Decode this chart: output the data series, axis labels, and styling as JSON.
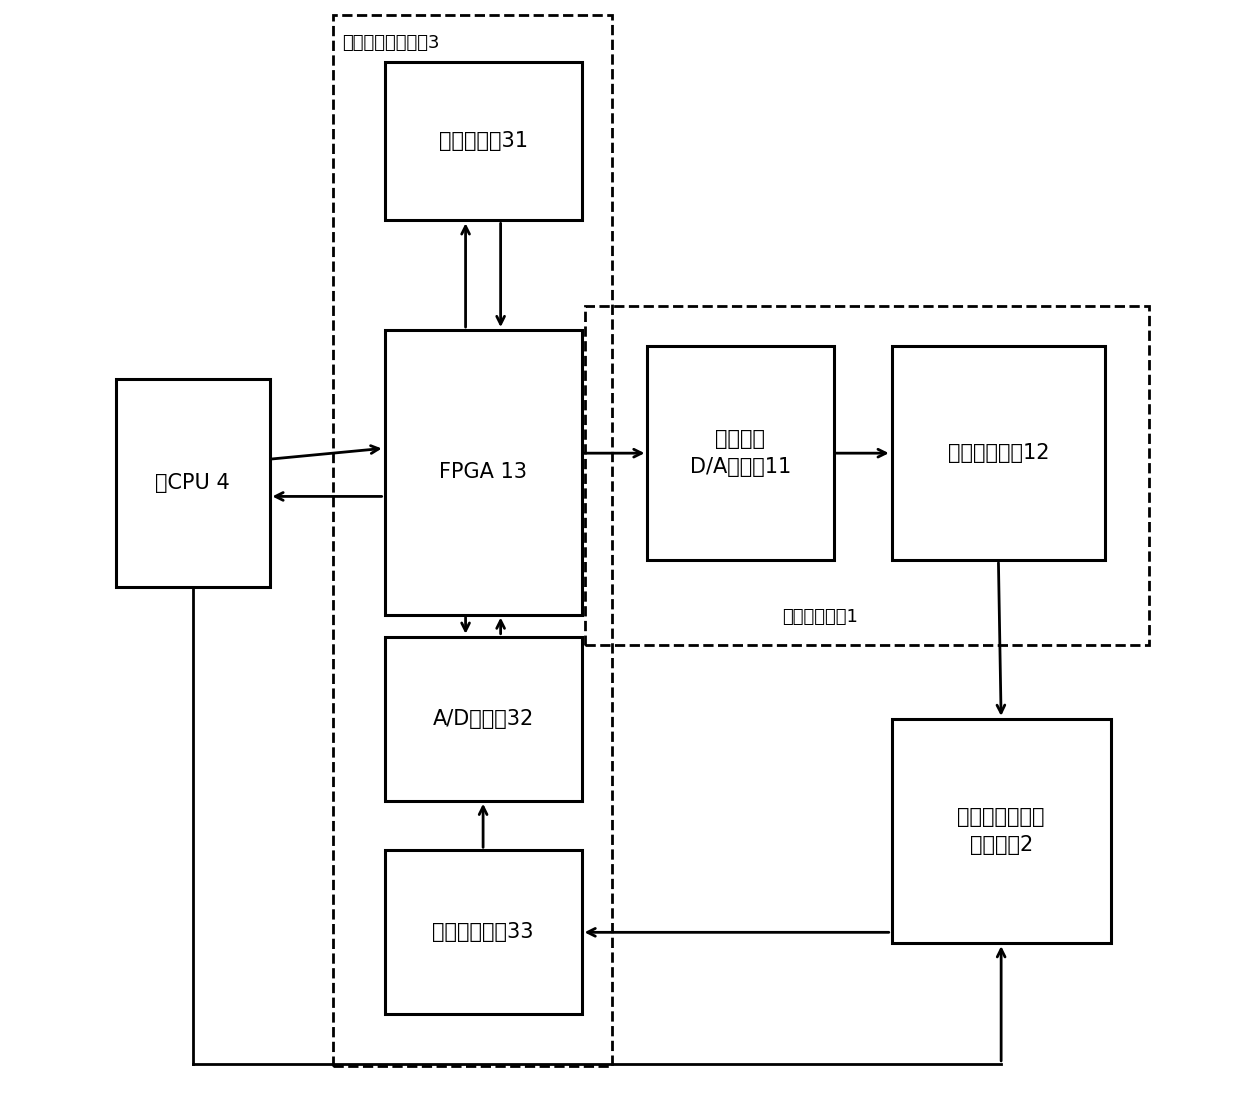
{
  "bg_color": "#ffffff",
  "line_color": "#000000",
  "block_labels": {
    "cpu": "主CPU 4",
    "mem31": "采集存储器31",
    "fpga": "FPGA 13",
    "da11": "高速差分\nD/A转换器11",
    "hd12": "后端处理电路12",
    "ad32": "A/D转换器32",
    "fe33": "前端处理电路33",
    "vc2": "电压与电流取样\n电路模块2"
  },
  "dashed_labels": {
    "module3": "采集测量存储模块3",
    "module1": "波形发生模块1"
  },
  "bpos": {
    "cpu": [
      0.04,
      0.345,
      0.14,
      0.19
    ],
    "mem31": [
      0.285,
      0.055,
      0.18,
      0.145
    ],
    "fpga": [
      0.285,
      0.3,
      0.18,
      0.26
    ],
    "da11": [
      0.525,
      0.315,
      0.17,
      0.195
    ],
    "hd12": [
      0.748,
      0.315,
      0.195,
      0.195
    ],
    "ad32": [
      0.285,
      0.58,
      0.18,
      0.15
    ],
    "fe33": [
      0.285,
      0.775,
      0.18,
      0.15
    ],
    "vc2": [
      0.748,
      0.655,
      0.2,
      0.205
    ]
  },
  "dpos": {
    "module3": [
      0.238,
      0.012,
      0.255,
      0.96
    ],
    "module1": [
      0.468,
      0.278,
      0.515,
      0.31
    ]
  },
  "fontsize_block": 15,
  "fontsize_module": 13
}
